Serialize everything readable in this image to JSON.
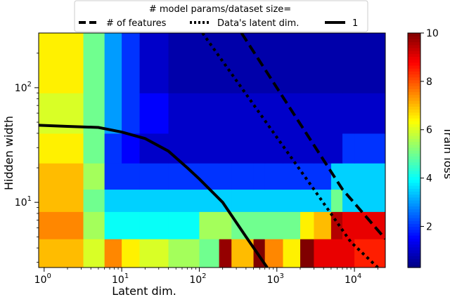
{
  "chart_data": {
    "type": "heatmap",
    "xlabel": "Latent dim.",
    "ylabel": "Hidden width",
    "xscale": "log",
    "yscale": "log",
    "xlim": [
      0.85,
      25000
    ],
    "ylim": [
      2.7,
      300
    ],
    "x_ticks": [
      {
        "value": 1,
        "base": "10",
        "exp": "0"
      },
      {
        "value": 10,
        "base": "10",
        "exp": "1"
      },
      {
        "value": 100,
        "base": "10",
        "exp": "2"
      },
      {
        "value": 1000,
        "base": "10",
        "exp": "3"
      },
      {
        "value": 10000,
        "base": "10",
        "exp": "4"
      }
    ],
    "y_ticks": [
      {
        "value": 10,
        "base": "10",
        "exp": "1"
      },
      {
        "value": 100,
        "base": "10",
        "exp": "2"
      }
    ],
    "colorbar": {
      "label": "Train loss",
      "range": [
        0.3,
        10
      ],
      "colormap": "jet",
      "ticks": [
        "2",
        "4",
        "6",
        "8",
        "10"
      ]
    },
    "legend": {
      "title": "# model params/dataset size=",
      "placement": "top-center",
      "entries": [
        {
          "label": "# of features",
          "style": "dashed"
        },
        {
          "label": "Data's latent dim.",
          "style": "dotted"
        },
        {
          "label": "1",
          "style": "solid"
        }
      ]
    },
    "x_columns": [
      {
        "x0": 0.85,
        "x1": 3.2
      },
      {
        "x0": 3.2,
        "x1": 6
      },
      {
        "x0": 6,
        "x1": 10
      },
      {
        "x0": 10,
        "x1": 17
      },
      {
        "x0": 17,
        "x1": 40
      },
      {
        "x0": 40,
        "x1": 100
      },
      {
        "x0": 100,
        "x1": 180
      },
      {
        "x0": 180,
        "x1": 260
      },
      {
        "x0": 260,
        "x1": 500
      },
      {
        "x0": 500,
        "x1": 700
      },
      {
        "x0": 700,
        "x1": 1200
      },
      {
        "x0": 1200,
        "x1": 2000
      },
      {
        "x0": 2000,
        "x1": 3000
      },
      {
        "x0": 3000,
        "x1": 5000
      },
      {
        "x0": 5000,
        "x1": 7000
      },
      {
        "x0": 7000,
        "x1": 10000
      },
      {
        "x0": 10000,
        "x1": 25000
      }
    ],
    "y_rows": [
      {
        "y0": 2.7,
        "y1": 4.8
      },
      {
        "y0": 4.8,
        "y1": 8.3
      },
      {
        "y0": 8.3,
        "y1": 13
      },
      {
        "y0": 13,
        "y1": 22
      },
      {
        "y0": 22,
        "y1": 40
      },
      {
        "y0": 40,
        "y1": 90
      },
      {
        "y0": 90,
        "y1": 300
      }
    ],
    "loss_grid": [
      [
        7.0,
        6.0,
        7.5,
        6.5,
        6.0,
        5.5,
        5.0,
        9.8,
        7.0,
        10.0,
        7.5,
        6.5,
        10.0,
        9.0,
        9.0,
        9.0,
        8.5
      ],
      [
        7.5,
        5.5,
        4.0,
        4.0,
        4.0,
        4.0,
        5.5,
        5.5,
        5.0,
        5.0,
        5.0,
        5.0,
        6.5,
        7.0,
        9.5,
        9.0,
        9.0
      ],
      [
        7.0,
        5.0,
        3.5,
        3.5,
        3.5,
        3.5,
        3.5,
        3.5,
        3.5,
        3.5,
        3.5,
        3.5,
        3.5,
        3.5,
        5.0,
        3.5,
        3.5
      ],
      [
        7.0,
        5.5,
        2.0,
        2.0,
        2.0,
        2.0,
        2.0,
        2.0,
        2.0,
        2.0,
        2.0,
        2.0,
        2.0,
        2.0,
        3.5,
        3.5,
        3.5
      ],
      [
        6.5,
        5.0,
        2.0,
        1.5,
        1.0,
        1.0,
        1.0,
        1.0,
        1.0,
        1.0,
        1.0,
        1.0,
        1.0,
        1.0,
        1.0,
        2.0,
        2.0
      ],
      [
        6.0,
        5.0,
        3.0,
        2.0,
        1.5,
        1.0,
        1.0,
        1.0,
        1.0,
        1.0,
        1.0,
        1.0,
        1.0,
        1.0,
        1.0,
        1.0,
        1.0
      ],
      [
        6.5,
        5.0,
        3.0,
        2.0,
        1.0,
        0.7,
        0.7,
        0.7,
        0.7,
        0.7,
        0.7,
        0.7,
        0.7,
        0.7,
        0.7,
        0.7,
        0.7
      ]
    ],
    "series": [
      {
        "label_ref": "dashed",
        "points": [
          [
            350,
            300
          ],
          [
            7000,
            13
          ],
          [
            25000,
            4.8
          ]
        ]
      },
      {
        "label_ref": "dotted",
        "points": [
          [
            110,
            300
          ],
          [
            3000,
            13
          ],
          [
            9000,
            4.5
          ],
          [
            20000,
            2.7
          ]
        ]
      },
      {
        "label_ref": "solid",
        "points": [
          [
            0.85,
            47
          ],
          [
            2,
            46
          ],
          [
            5,
            45
          ],
          [
            10,
            41
          ],
          [
            20,
            36
          ],
          [
            40,
            28
          ],
          [
            70,
            20
          ],
          [
            100,
            16
          ],
          [
            200,
            10
          ],
          [
            400,
            5
          ],
          [
            750,
            2.7
          ]
        ]
      }
    ]
  }
}
